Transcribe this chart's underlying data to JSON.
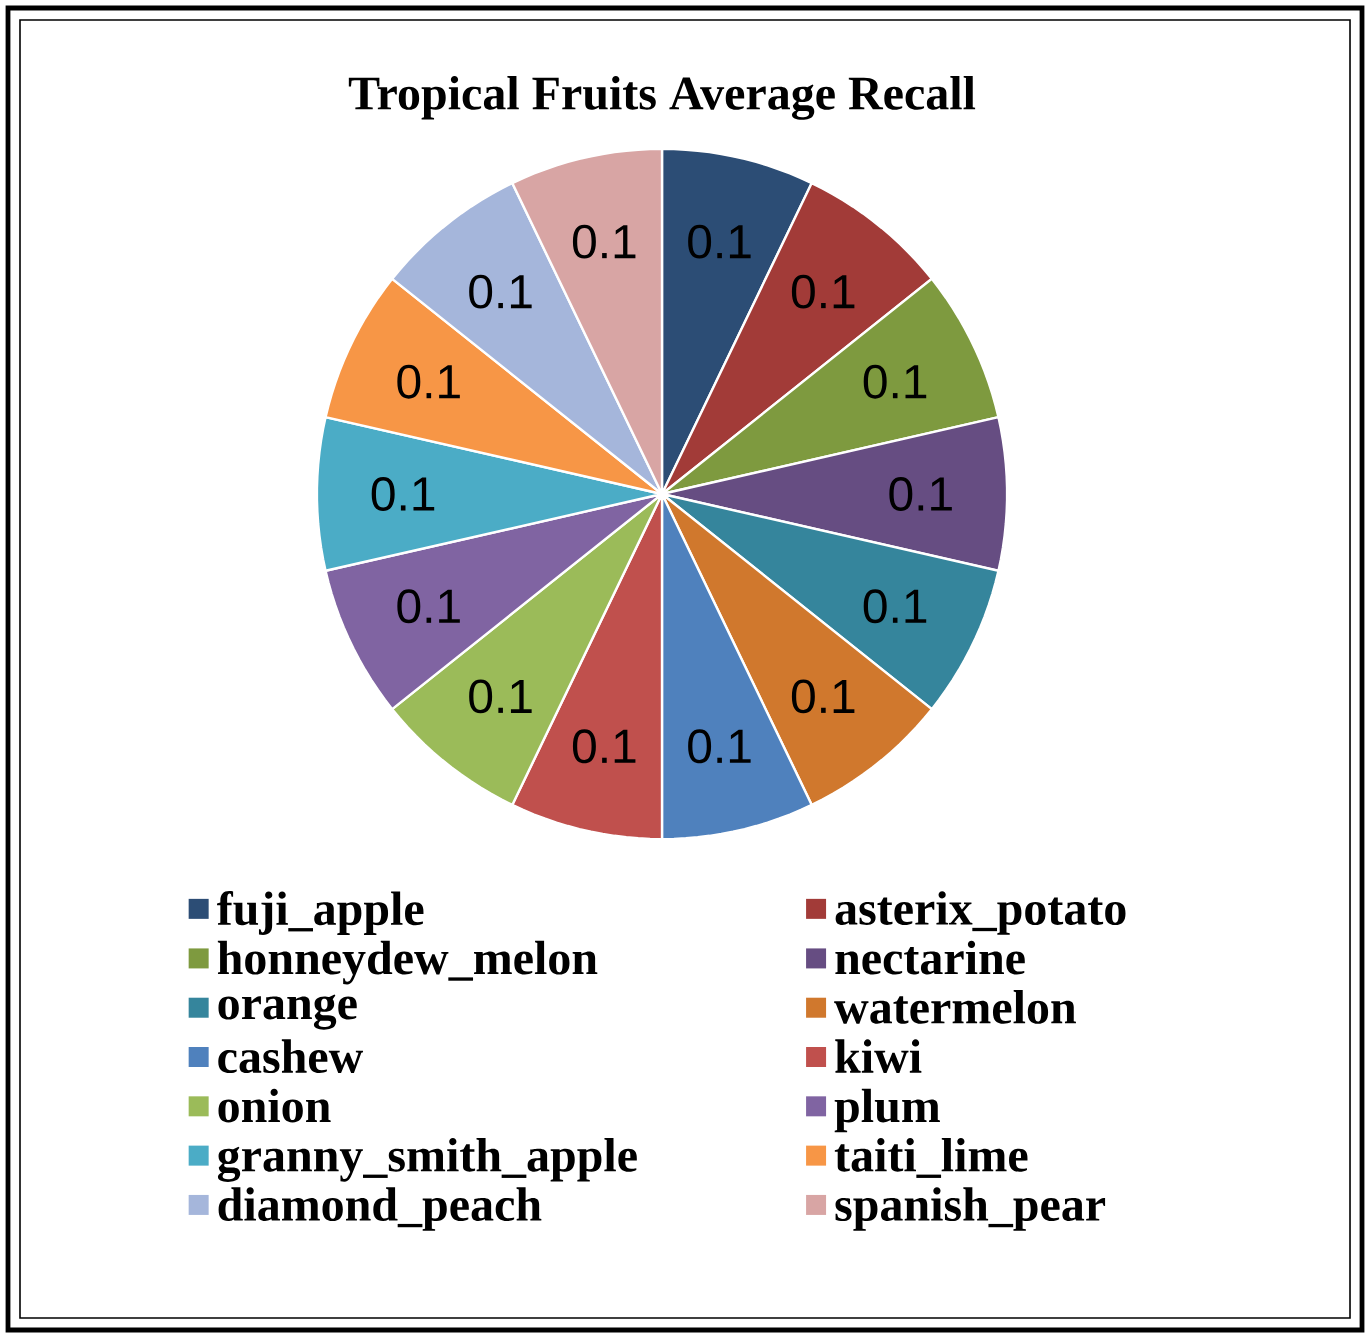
{
  "chart_data": {
    "type": "pie",
    "title": "Tropical Fruits Average Recall",
    "categories": [
      "fuji_apple",
      "asterix_potato",
      "honneydew_melon",
      "nectarine",
      "orange",
      "watermelon",
      "cashew",
      "kiwi",
      "onion",
      "plum",
      "granny_smith_apple",
      "taiti_lime",
      "diamond_peach",
      "spanish_pear"
    ],
    "values": [
      0.1,
      0.1,
      0.1,
      0.1,
      0.1,
      0.1,
      0.1,
      0.1,
      0.1,
      0.1,
      0.1,
      0.1,
      0.1,
      0.1
    ],
    "colors": [
      "#2c4d75",
      "#a23b38",
      "#7e9a3f",
      "#664d82",
      "#35859c",
      "#d0782d",
      "#4f81bd",
      "#c0504d",
      "#9bbb59",
      "#8064a2",
      "#4bacc6",
      "#f79646",
      "#a5b6db",
      "#d8a5a4"
    ],
    "data_labels": true,
    "legend": "bottom"
  }
}
